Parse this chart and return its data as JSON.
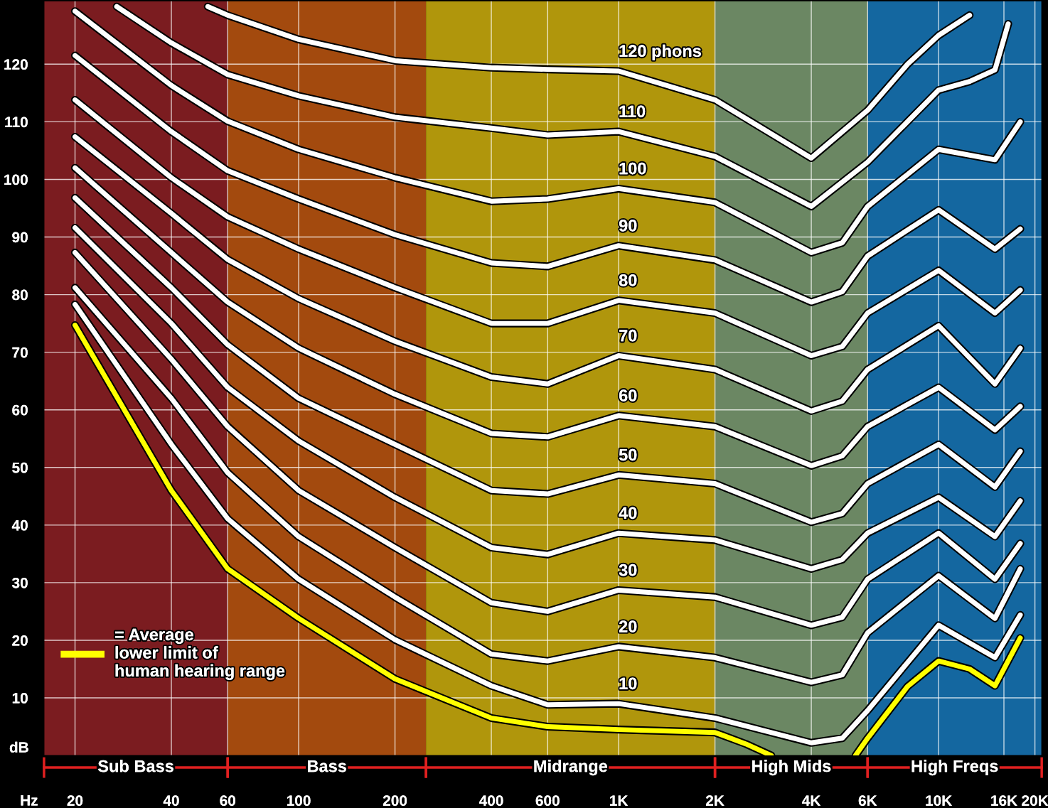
{
  "chart_data": {
    "type": "line",
    "xlabel": "Hz",
    "ylabel": "dB",
    "log": "x",
    "xlim": [
      16,
      21000
    ],
    "ylim": [
      0,
      131
    ],
    "xticks": [
      20,
      40,
      60,
      100,
      200,
      400,
      600,
      {
        "value": 1000,
        "label": "1K"
      },
      {
        "value": 2000,
        "label": "2K"
      },
      {
        "value": 4000,
        "label": "4K"
      },
      {
        "value": 6000,
        "label": "6K"
      },
      {
        "value": 10000,
        "label": "10K"
      },
      {
        "value": 16000,
        "label": "16K"
      },
      {
        "value": 20000,
        "label": "20K"
      }
    ],
    "yticks": [
      10,
      20,
      30,
      40,
      50,
      60,
      70,
      80,
      90,
      100,
      110,
      120
    ],
    "grid": true,
    "legend": "bottom left",
    "bands": [
      {
        "axis": "x",
        "from": 16,
        "to": 60,
        "label": "Sub Bass",
        "color": "#7b1c20"
      },
      {
        "axis": "x",
        "from": 60,
        "to": 250,
        "label": "Bass",
        "color": "#a34a0e"
      },
      {
        "axis": "x",
        "from": 250,
        "to": 2000,
        "label": "Midrange",
        "color": "#b0960c"
      },
      {
        "axis": "x",
        "from": 2000,
        "to": 6000,
        "label": "High Mids",
        "color": "#6b8763"
      },
      {
        "axis": "x",
        "from": 6000,
        "to": 21000,
        "label": "High Freqs",
        "color": "#1467a0"
      }
    ],
    "x": [
      20,
      40,
      60,
      100,
      200,
      400,
      600,
      1000,
      2000,
      4000,
      5000,
      6000,
      10000,
      15000,
      18000
    ],
    "series": [
      {
        "name": "120 phons",
        "color": "#ffffff",
        "x": [
          52,
          60,
          100,
          200,
          400,
          600,
          1000,
          2000,
          4000,
          6000,
          8000,
          10000,
          12500
        ],
        "values": [
          130,
          128.5,
          124.3,
          120.6,
          119.4,
          119.1,
          118.8,
          113.8,
          103.7,
          112,
          120,
          125,
          128.5
        ]
      },
      {
        "name": "110",
        "color": "#ffffff",
        "x": [
          27,
          40,
          60,
          100,
          200,
          400,
          600,
          1000,
          2000,
          4000,
          6000,
          10000,
          12500,
          15000,
          16500
        ],
        "values": [
          130,
          123.7,
          118.2,
          114.5,
          110.8,
          108.9,
          107.7,
          108.3,
          104,
          95.3,
          103,
          115.5,
          117,
          119,
          127
        ]
      },
      {
        "name": "100",
        "color": "#ffffff",
        "values": [
          129.2,
          116.3,
          110.1,
          105.2,
          100.3,
          96.2,
          96.6,
          98.4,
          96,
          87.3,
          89,
          95.3,
          105.2,
          103.4,
          110
        ]
      },
      {
        "name": "90",
        "color": "#ffffff",
        "values": [
          121.5,
          108.3,
          101.5,
          96.6,
          90.4,
          85.5,
          84.9,
          88.5,
          86,
          78.7,
          80.5,
          86.7,
          94.7,
          87.9,
          91.4
        ]
      },
      {
        "name": "80",
        "color": "#ffffff",
        "values": [
          113.8,
          100.3,
          93.5,
          87.9,
          81.2,
          75,
          75,
          79,
          76.8,
          69.4,
          71,
          76.8,
          84.2,
          76.8,
          80.8
        ]
      },
      {
        "name": "70",
        "color": "#ffffff",
        "values": [
          107.4,
          94.1,
          86.1,
          79.3,
          71.9,
          65.7,
          64.5,
          69.4,
          67,
          59.8,
          61.5,
          67,
          74.6,
          64.5,
          70.7
        ]
      },
      {
        "name": "60",
        "color": "#ffffff",
        "values": [
          102,
          87.3,
          78.7,
          70.7,
          62.7,
          55.9,
          55.3,
          59,
          57.1,
          50.3,
          52,
          57.1,
          63.9,
          56.5,
          60.6
        ]
      },
      {
        "name": "50",
        "color": "#ffffff",
        "values": [
          96.8,
          81.2,
          71.3,
          62,
          54,
          46,
          45.4,
          48.7,
          47.2,
          40.5,
          42,
          47.2,
          54,
          46.6,
          52.8
        ]
      },
      {
        "name": "40",
        "color": "#ffffff",
        "values": [
          91.6,
          75,
          63.9,
          54.6,
          44.8,
          36.1,
          34.9,
          38.6,
          37.4,
          32.4,
          34,
          38.6,
          44.8,
          38,
          44.2
        ]
      },
      {
        "name": "30",
        "color": "#ffffff",
        "values": [
          87.3,
          68.8,
          57.1,
          46,
          36.1,
          26.5,
          25,
          28.7,
          27.5,
          22.6,
          24,
          30.6,
          38.6,
          30.6,
          36.8
        ]
      },
      {
        "name": "20",
        "color": "#ffffff",
        "values": [
          81.2,
          62,
          49.1,
          38,
          27.5,
          17.6,
          16.4,
          18.9,
          17,
          12.7,
          14,
          21.3,
          31.2,
          23.8,
          32.4
        ]
      },
      {
        "name": "10",
        "color": "#ffffff",
        "values": [
          78.3,
          54,
          41.1,
          30.6,
          20.1,
          12.1,
          8.8,
          9,
          6.5,
          2.2,
          3,
          7.8,
          22.6,
          17,
          24.4
        ]
      },
      {
        "name": "= Average\nlower limit of\nhuman hearing range",
        "color": "#ffff00",
        "x": [
          20,
          40,
          60,
          100,
          200,
          400,
          600,
          1000,
          2000,
          2500,
          3000,
          4000,
          5500,
          6000,
          8000,
          10000,
          12500,
          15000,
          18000
        ],
        "values": [
          74.7,
          46,
          32.4,
          23.8,
          13.3,
          6.5,
          5,
          4.5,
          4,
          2,
          0,
          null,
          0,
          3,
          12,
          16.4,
          15,
          12.1,
          20.4
        ]
      }
    ]
  }
}
